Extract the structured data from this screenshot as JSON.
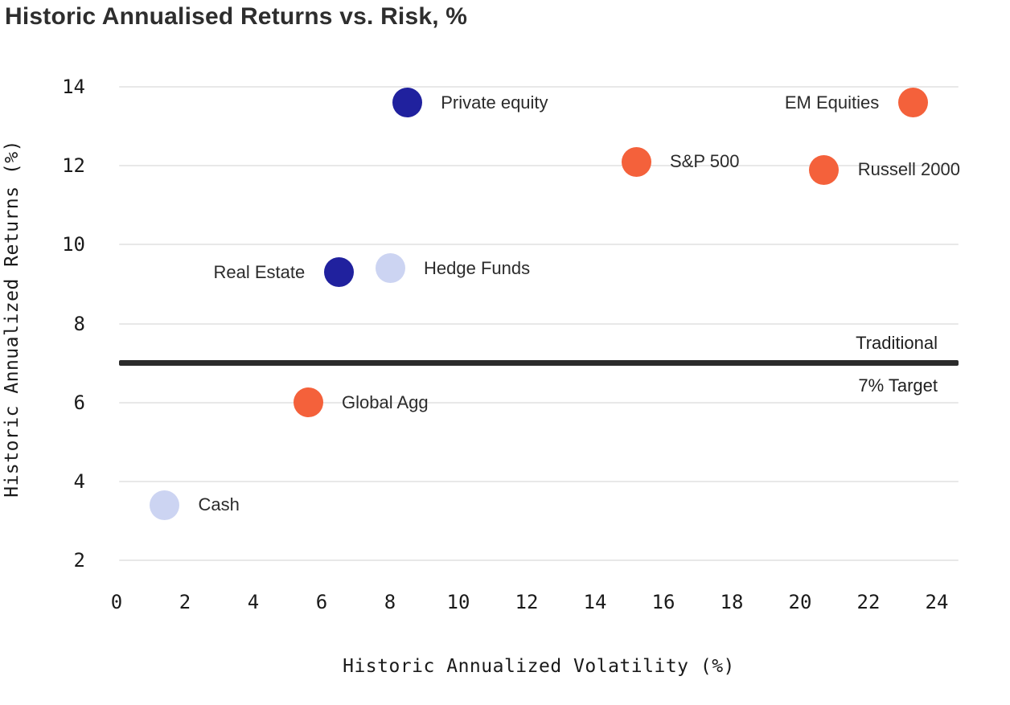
{
  "chart_data": {
    "type": "scatter",
    "title": "Historic Annualised Returns vs. Risk, %",
    "xlabel": "Historic Annualized Volatility (%)",
    "ylabel": "Historic Annualized Returns (%)",
    "x_ticks": [
      0,
      2,
      4,
      6,
      8,
      10,
      12,
      14,
      16,
      18,
      20,
      22,
      24
    ],
    "y_ticks": [
      2,
      4,
      6,
      8,
      10,
      12,
      14
    ],
    "xlim": [
      0,
      24.6
    ],
    "ylim": [
      1.8,
      14.5
    ],
    "grid": "horizontal",
    "legend": "none",
    "points": [
      {
        "name": "Private equity",
        "x": 8.5,
        "y": 13.6,
        "color_key": "navy",
        "label_side": "right"
      },
      {
        "name": "EM Equities",
        "x": 23.3,
        "y": 13.6,
        "color_key": "orange",
        "label_side": "left"
      },
      {
        "name": "S&P 500",
        "x": 15.2,
        "y": 12.1,
        "color_key": "orange",
        "label_side": "right"
      },
      {
        "name": "Russell 2000",
        "x": 20.7,
        "y": 11.9,
        "color_key": "orange",
        "label_side": "right"
      },
      {
        "name": "Hedge Funds",
        "x": 8.0,
        "y": 9.4,
        "color_key": "lavender",
        "label_side": "right"
      },
      {
        "name": "Real Estate",
        "x": 6.5,
        "y": 9.3,
        "color_key": "navy",
        "label_side": "left"
      },
      {
        "name": "Global Agg",
        "x": 5.6,
        "y": 6.0,
        "color_key": "orange",
        "label_side": "right"
      },
      {
        "name": "Cash",
        "x": 1.4,
        "y": 3.4,
        "color_key": "lavender",
        "label_side": "right"
      }
    ],
    "reference_line": {
      "y": 7,
      "label_above": "Traditional",
      "label_below": "7% Target"
    }
  },
  "colors": {
    "navy": "#20219e",
    "orange": "#f4613b",
    "lavender": "#ccd4f2",
    "reference_line": "#2b2b2b",
    "gridline": "#e8e8e8",
    "text": "#1a1a1a"
  }
}
